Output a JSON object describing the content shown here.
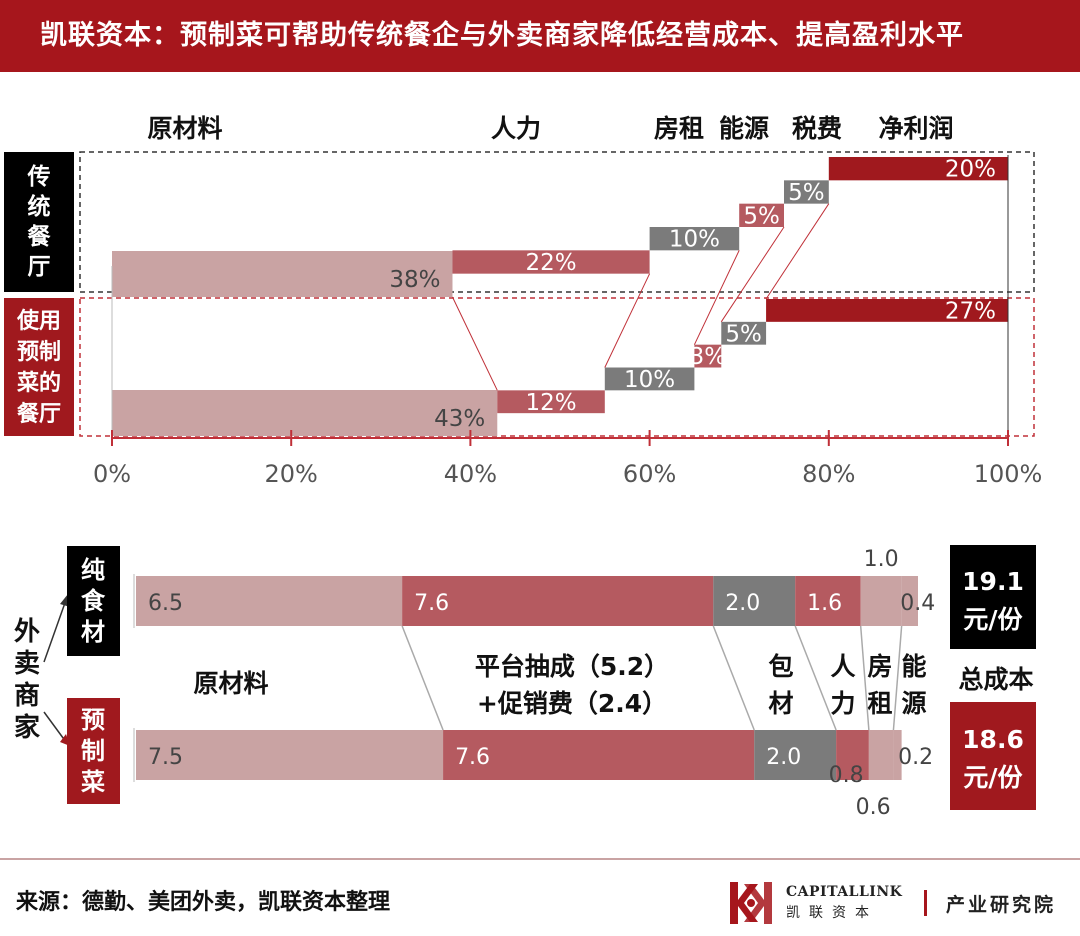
{
  "header": {
    "title": "凯联资本：预制菜可帮助传统餐企与外卖商家降低经营成本、提高盈利水平"
  },
  "colors": {
    "header_bg": "#a6161c",
    "pink": "#c9a3a3",
    "rose": "#b55a60",
    "gray": "#7b7b7b",
    "red": "#a0191e",
    "black": "#000000"
  },
  "chart_data": [
    {
      "type": "bar",
      "subtype": "waterfall-stacked-horizontal",
      "categories": [
        "原材料",
        "人力",
        "房租",
        "能源",
        "税费",
        "净利润"
      ],
      "rows": [
        {
          "name": "传统餐厅",
          "values": [
            38,
            22,
            10,
            5,
            5,
            20
          ],
          "labels": [
            "38%",
            "22%",
            "10%",
            "5%",
            "5%",
            "20%"
          ]
        },
        {
          "name": "使用预制菜的餐厅",
          "values": [
            43,
            12,
            10,
            3,
            5,
            27
          ],
          "labels": [
            "43%",
            "12%",
            "10%",
            "3%",
            "5%",
            "27%"
          ]
        }
      ],
      "xlim": [
        0,
        100
      ],
      "x_ticks": [
        "0%",
        "20%",
        "40%",
        "60%",
        "80%",
        "100%"
      ]
    },
    {
      "type": "bar",
      "subtype": "stacked-horizontal",
      "group_label": "外卖商家",
      "categories": [
        "原材料",
        "平台抽成（5.2）+促销费（2.4）",
        "包材",
        "人力",
        "房租",
        "能源"
      ],
      "rows": [
        {
          "name": "纯食材",
          "values": [
            6.5,
            7.6,
            2.0,
            1.6,
            1.0,
            0.4
          ],
          "labels": [
            "6.5",
            "7.6",
            "2.0",
            "1.6",
            "1.0",
            "0.4"
          ],
          "total": "19.1元/份"
        },
        {
          "name": "预制菜",
          "values": [
            7.5,
            7.6,
            2.0,
            0.8,
            0.6,
            0.2
          ],
          "labels": [
            "7.5",
            "7.6",
            "2.0",
            "0.8",
            "0.6",
            "0.2"
          ],
          "total": "18.6元/份"
        }
      ],
      "total_label": "总成本"
    }
  ],
  "footer": {
    "source": "来源：德勤、美团外卖，凯联资本整理"
  },
  "brand": {
    "en": "CAPITALLINK",
    "cn": "凯联资本",
    "institute": "产业研究院"
  }
}
